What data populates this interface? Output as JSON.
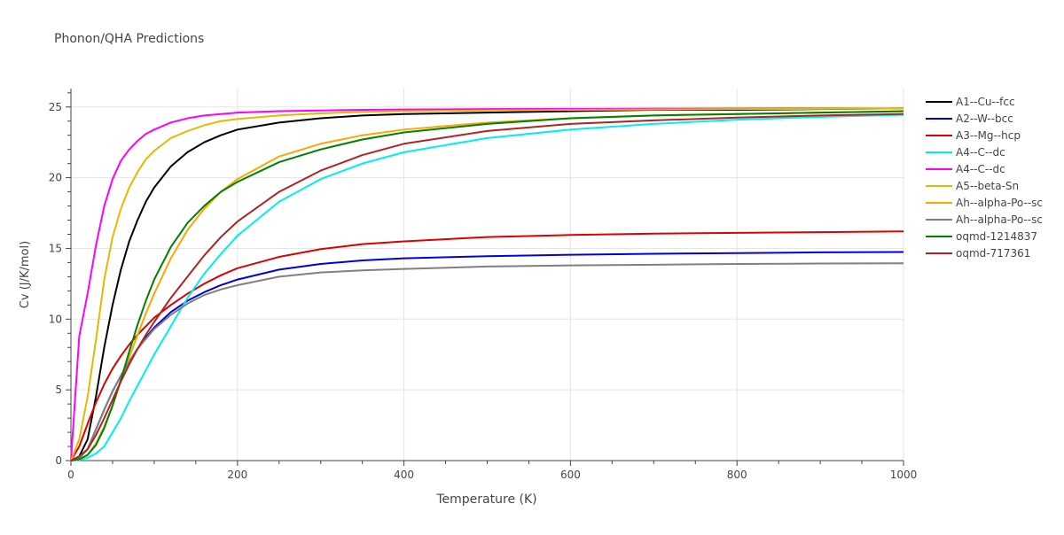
{
  "chart_data": {
    "type": "line",
    "title": "Phonon/QHA Predictions",
    "xlabel": "Temperature (K)",
    "ylabel": "Cv (J/K/mol)",
    "xlim": [
      0,
      1000
    ],
    "ylim": [
      0,
      26.3
    ],
    "x_ticks": [
      0,
      200,
      400,
      600,
      800,
      1000
    ],
    "y_ticks": [
      0,
      5,
      10,
      15,
      20,
      25
    ],
    "grid": true,
    "legend_position": "right",
    "x": [
      0,
      10,
      20,
      30,
      40,
      50,
      60,
      70,
      80,
      90,
      100,
      120,
      140,
      160,
      180,
      200,
      250,
      300,
      350,
      400,
      500,
      600,
      700,
      800,
      900,
      1000
    ],
    "series": [
      {
        "name": "A1--Cu--fcc",
        "color": "#000000",
        "values": [
          0,
          0.3,
          1.5,
          4.5,
          8.0,
          11.0,
          13.5,
          15.5,
          17.0,
          18.3,
          19.3,
          20.8,
          21.8,
          22.5,
          23.0,
          23.4,
          23.9,
          24.2,
          24.4,
          24.5,
          24.6,
          24.7,
          24.8,
          24.8,
          24.85,
          24.9
        ]
      },
      {
        "name": "A2--W--bcc",
        "color": "#0000dd",
        "values": [
          0,
          0.2,
          0.8,
          2.2,
          3.6,
          4.9,
          6.0,
          7.0,
          7.9,
          8.7,
          9.4,
          10.5,
          11.3,
          11.9,
          12.4,
          12.8,
          13.5,
          13.9,
          14.15,
          14.3,
          14.45,
          14.55,
          14.62,
          14.67,
          14.72,
          14.75
        ]
      },
      {
        "name": "A3--Mg--hcp",
        "color": "#dd0000",
        "values": [
          0,
          1.0,
          2.6,
          4.1,
          5.4,
          6.5,
          7.4,
          8.2,
          8.9,
          9.5,
          10.1,
          11.0,
          11.8,
          12.5,
          13.1,
          13.6,
          14.4,
          14.95,
          15.3,
          15.5,
          15.8,
          15.95,
          16.05,
          16.1,
          16.15,
          16.2
        ]
      },
      {
        "name": "A4--C--dc",
        "color": "#00eeee",
        "values": [
          0,
          0.05,
          0.2,
          0.5,
          1.0,
          2.0,
          3.0,
          4.2,
          5.3,
          6.4,
          7.5,
          9.5,
          11.5,
          13.2,
          14.6,
          15.9,
          18.3,
          19.9,
          21.0,
          21.8,
          22.8,
          23.4,
          23.8,
          24.1,
          24.3,
          24.45
        ]
      },
      {
        "name": "A4--C--dc",
        "color": "#ff00ff",
        "values": [
          0,
          8.8,
          11.8,
          15.2,
          18.0,
          19.9,
          21.2,
          22.0,
          22.6,
          23.1,
          23.4,
          23.9,
          24.2,
          24.4,
          24.5,
          24.6,
          24.7,
          24.75,
          24.8,
          24.82,
          24.85,
          24.87,
          24.88,
          24.89,
          24.9,
          24.9
        ]
      },
      {
        "name": "A5--beta-Sn",
        "color": "#e6b800",
        "values": [
          0,
          1.5,
          4.5,
          8.5,
          12.8,
          15.8,
          17.8,
          19.3,
          20.4,
          21.3,
          21.9,
          22.8,
          23.3,
          23.7,
          24.0,
          24.15,
          24.4,
          24.55,
          24.65,
          24.7,
          24.75,
          24.8,
          24.82,
          24.85,
          24.87,
          24.9
        ]
      },
      {
        "name": "Ah--alpha-Po--sc",
        "color": "#ffa500",
        "values": [
          0,
          0.1,
          0.4,
          1.2,
          2.4,
          3.9,
          5.6,
          7.3,
          8.9,
          10.4,
          11.8,
          14.3,
          16.3,
          17.8,
          19.0,
          19.9,
          21.5,
          22.4,
          23.0,
          23.4,
          23.9,
          24.2,
          24.4,
          24.5,
          24.6,
          24.7
        ]
      },
      {
        "name": "Ah--alpha-Po--sc",
        "color": "#808080",
        "values": [
          0,
          0.2,
          0.8,
          2.2,
          3.6,
          4.9,
          6.0,
          7.0,
          7.9,
          8.6,
          9.3,
          10.3,
          11.1,
          11.7,
          12.1,
          12.4,
          13.0,
          13.3,
          13.45,
          13.55,
          13.72,
          13.8,
          13.85,
          13.9,
          13.93,
          13.95
        ]
      },
      {
        "name": "oqmd-1214837",
        "color": "#008000",
        "values": [
          0,
          0.1,
          0.4,
          1.1,
          2.3,
          3.9,
          5.7,
          7.7,
          9.6,
          11.3,
          12.8,
          15.1,
          16.8,
          18.0,
          19.0,
          19.7,
          21.1,
          22.0,
          22.7,
          23.2,
          23.8,
          24.2,
          24.4,
          24.5,
          24.6,
          24.7
        ]
      },
      {
        "name": "oqmd-717361",
        "color": "#b22222",
        "values": [
          0,
          0.3,
          0.8,
          1.8,
          3.0,
          4.3,
          5.6,
          6.8,
          7.9,
          8.9,
          9.8,
          11.5,
          13.0,
          14.5,
          15.8,
          16.9,
          19.0,
          20.5,
          21.6,
          22.4,
          23.3,
          23.8,
          24.05,
          24.25,
          24.4,
          24.5
        ]
      }
    ]
  }
}
